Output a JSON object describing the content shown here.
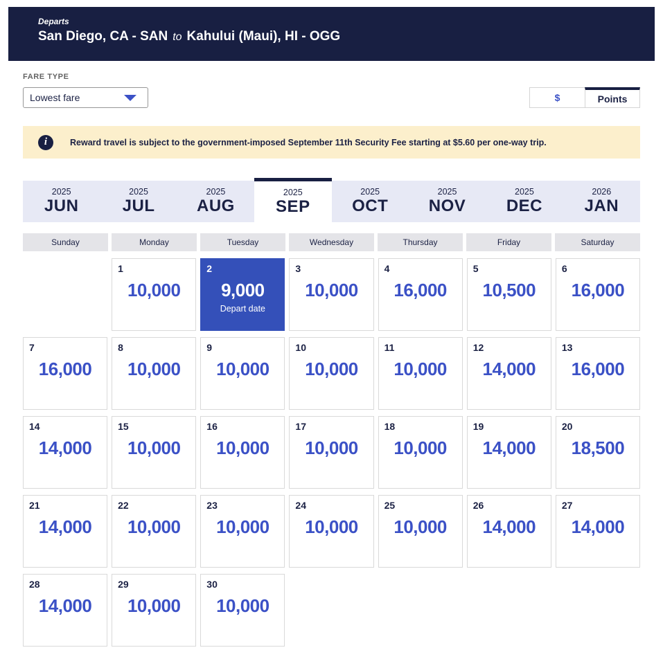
{
  "header": {
    "departs_label": "Departs",
    "origin": "San Diego, CA - SAN",
    "to_label": "to",
    "destination": "Kahului (Maui), HI - OGG"
  },
  "fare_type": {
    "label": "FARE TYPE",
    "selected_option": "Lowest fare"
  },
  "currency_toggle": {
    "dollar_label": "$",
    "points_label": "Points",
    "selected": "Points"
  },
  "notice": {
    "icon_glyph": "i",
    "text": "Reward travel is subject to the government-imposed September 11th Security Fee starting at $5.60 per one-way trip."
  },
  "month_tabs": [
    {
      "year": "2025",
      "month": "JUN",
      "selected": false
    },
    {
      "year": "2025",
      "month": "JUL",
      "selected": false
    },
    {
      "year": "2025",
      "month": "AUG",
      "selected": false
    },
    {
      "year": "2025",
      "month": "SEP",
      "selected": true
    },
    {
      "year": "2025",
      "month": "OCT",
      "selected": false
    },
    {
      "year": "2025",
      "month": "NOV",
      "selected": false
    },
    {
      "year": "2025",
      "month": "DEC",
      "selected": false
    },
    {
      "year": "2026",
      "month": "JAN",
      "selected": false
    }
  ],
  "weekdays": [
    "Sunday",
    "Monday",
    "Tuesday",
    "Wednesday",
    "Thursday",
    "Friday",
    "Saturday"
  ],
  "calendar": {
    "start_offset": 1,
    "total_cells": 35,
    "selected_day_note": "Depart date",
    "days": [
      {
        "day": "1",
        "fare": "10,000",
        "selected": false
      },
      {
        "day": "2",
        "fare": "9,000",
        "selected": true
      },
      {
        "day": "3",
        "fare": "10,000",
        "selected": false
      },
      {
        "day": "4",
        "fare": "16,000",
        "selected": false
      },
      {
        "day": "5",
        "fare": "10,500",
        "selected": false
      },
      {
        "day": "6",
        "fare": "16,000",
        "selected": false
      },
      {
        "day": "7",
        "fare": "16,000",
        "selected": false
      },
      {
        "day": "8",
        "fare": "10,000",
        "selected": false
      },
      {
        "day": "9",
        "fare": "10,000",
        "selected": false
      },
      {
        "day": "10",
        "fare": "10,000",
        "selected": false
      },
      {
        "day": "11",
        "fare": "10,000",
        "selected": false
      },
      {
        "day": "12",
        "fare": "14,000",
        "selected": false
      },
      {
        "day": "13",
        "fare": "16,000",
        "selected": false
      },
      {
        "day": "14",
        "fare": "14,000",
        "selected": false
      },
      {
        "day": "15",
        "fare": "10,000",
        "selected": false
      },
      {
        "day": "16",
        "fare": "10,000",
        "selected": false
      },
      {
        "day": "17",
        "fare": "10,000",
        "selected": false
      },
      {
        "day": "18",
        "fare": "10,000",
        "selected": false
      },
      {
        "day": "19",
        "fare": "14,000",
        "selected": false
      },
      {
        "day": "20",
        "fare": "18,500",
        "selected": false
      },
      {
        "day": "21",
        "fare": "14,000",
        "selected": false
      },
      {
        "day": "22",
        "fare": "10,000",
        "selected": false
      },
      {
        "day": "23",
        "fare": "10,000",
        "selected": false
      },
      {
        "day": "24",
        "fare": "10,000",
        "selected": false
      },
      {
        "day": "25",
        "fare": "10,000",
        "selected": false
      },
      {
        "day": "26",
        "fare": "14,000",
        "selected": false
      },
      {
        "day": "27",
        "fare": "14,000",
        "selected": false
      },
      {
        "day": "28",
        "fare": "14,000",
        "selected": false
      },
      {
        "day": "29",
        "fare": "10,000",
        "selected": false
      },
      {
        "day": "30",
        "fare": "10,000",
        "selected": false
      }
    ]
  },
  "colors": {
    "navy": "#181f42",
    "fare_blue": "#3b51c6",
    "selected_cell_bg": "#3450b9",
    "notice_bg": "#fcefcc",
    "tab_bg": "#e7e9f5",
    "weekday_bg": "#e4e4e8"
  }
}
